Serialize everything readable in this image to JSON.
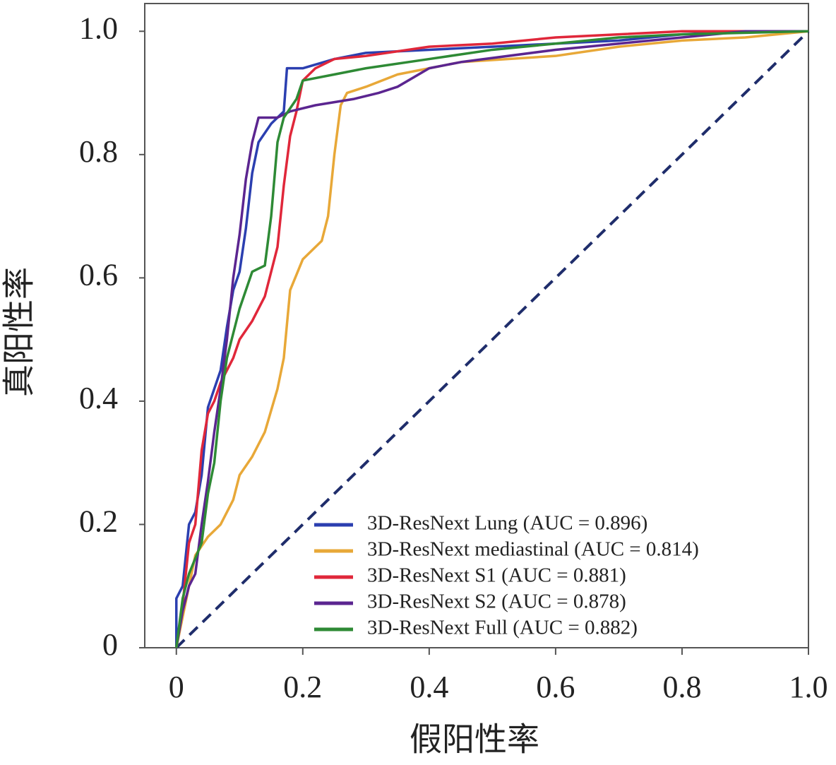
{
  "chart_data": {
    "type": "line",
    "xlabel": "假阳性率",
    "ylabel": "真阳性率",
    "xlim": [
      -0.05,
      1.0
    ],
    "ylim": [
      0,
      1.045
    ],
    "xticks": [
      0,
      0.2,
      0.4,
      0.6,
      0.8,
      {
        "value": 1,
        "label": "1.0"
      }
    ],
    "yticks": [
      0,
      0.2,
      0.4,
      0.6,
      0.8,
      {
        "value": 1,
        "label": "1.0"
      }
    ],
    "legend": "lower right",
    "diagonal": {
      "x": [
        0,
        1
      ],
      "y": [
        0,
        1
      ],
      "color": "#1f2d6b",
      "dashed": true
    },
    "series": [
      {
        "name": "3D-ResNext Lung (AUC = 0.896)",
        "color": "#2b3fb0",
        "x": [
          0,
          0,
          0.01,
          0.02,
          0.03,
          0.04,
          0.05,
          0.06,
          0.07,
          0.08,
          0.09,
          0.1,
          0.11,
          0.12,
          0.13,
          0.15,
          0.17,
          0.175,
          0.2,
          0.25,
          0.3,
          0.4,
          0.5,
          0.6,
          0.7,
          0.8,
          0.9,
          1
        ],
        "values": [
          0,
          0.08,
          0.1,
          0.2,
          0.22,
          0.28,
          0.39,
          0.42,
          0.45,
          0.52,
          0.58,
          0.61,
          0.68,
          0.77,
          0.82,
          0.85,
          0.87,
          0.94,
          0.94,
          0.955,
          0.965,
          0.97,
          0.975,
          0.98,
          0.985,
          0.995,
          1.0,
          1.0
        ]
      },
      {
        "name": "3D-ResNext mediastinal (AUC = 0.814)",
        "color": "#e8a838",
        "x": [
          0,
          0.01,
          0.02,
          0.03,
          0.05,
          0.07,
          0.09,
          0.1,
          0.12,
          0.14,
          0.16,
          0.17,
          0.18,
          0.2,
          0.23,
          0.24,
          0.25,
          0.26,
          0.27,
          0.3,
          0.35,
          0.45,
          0.6,
          0.7,
          0.8,
          0.9,
          1
        ],
        "values": [
          0,
          0.05,
          0.1,
          0.15,
          0.18,
          0.2,
          0.24,
          0.28,
          0.31,
          0.35,
          0.42,
          0.47,
          0.58,
          0.63,
          0.66,
          0.7,
          0.8,
          0.88,
          0.9,
          0.91,
          0.93,
          0.95,
          0.96,
          0.975,
          0.985,
          0.99,
          1.0
        ]
      },
      {
        "name": "3D-ResNext S1 (AUC = 0.881)",
        "color": "#e0273a",
        "x": [
          0,
          0.01,
          0.02,
          0.03,
          0.04,
          0.05,
          0.06,
          0.07,
          0.09,
          0.1,
          0.12,
          0.14,
          0.16,
          0.17,
          0.18,
          0.19,
          0.2,
          0.22,
          0.25,
          0.3,
          0.4,
          0.5,
          0.6,
          0.7,
          0.8,
          1
        ],
        "values": [
          0,
          0.07,
          0.17,
          0.2,
          0.32,
          0.38,
          0.4,
          0.43,
          0.47,
          0.5,
          0.53,
          0.57,
          0.65,
          0.75,
          0.83,
          0.87,
          0.92,
          0.94,
          0.955,
          0.96,
          0.975,
          0.98,
          0.99,
          0.995,
          1.0,
          1.0
        ]
      },
      {
        "name": "3D-ResNext S2 (AUC = 0.878)",
        "color": "#5b2590",
        "x": [
          0,
          0.01,
          0.02,
          0.03,
          0.04,
          0.05,
          0.06,
          0.07,
          0.08,
          0.09,
          0.1,
          0.11,
          0.12,
          0.13,
          0.16,
          0.18,
          0.22,
          0.28,
          0.32,
          0.35,
          0.4,
          0.45,
          0.6,
          0.7,
          0.8,
          0.9,
          1
        ],
        "values": [
          0,
          0.06,
          0.1,
          0.12,
          0.2,
          0.27,
          0.35,
          0.42,
          0.5,
          0.6,
          0.67,
          0.76,
          0.82,
          0.86,
          0.86,
          0.87,
          0.88,
          0.89,
          0.9,
          0.91,
          0.94,
          0.95,
          0.97,
          0.98,
          0.99,
          1.0,
          1.0
        ]
      },
      {
        "name": "3D-ResNext Full (AUC = 0.882)",
        "color": "#2e8a35",
        "x": [
          0,
          0.01,
          0.02,
          0.04,
          0.05,
          0.06,
          0.07,
          0.08,
          0.1,
          0.12,
          0.14,
          0.15,
          0.16,
          0.17,
          0.19,
          0.2,
          0.25,
          0.3,
          0.4,
          0.5,
          0.6,
          0.7,
          0.8,
          1
        ],
        "values": [
          0,
          0.08,
          0.12,
          0.17,
          0.25,
          0.3,
          0.4,
          0.47,
          0.55,
          0.61,
          0.62,
          0.7,
          0.82,
          0.86,
          0.89,
          0.92,
          0.93,
          0.94,
          0.955,
          0.97,
          0.98,
          0.99,
          0.995,
          1.0
        ]
      }
    ]
  }
}
